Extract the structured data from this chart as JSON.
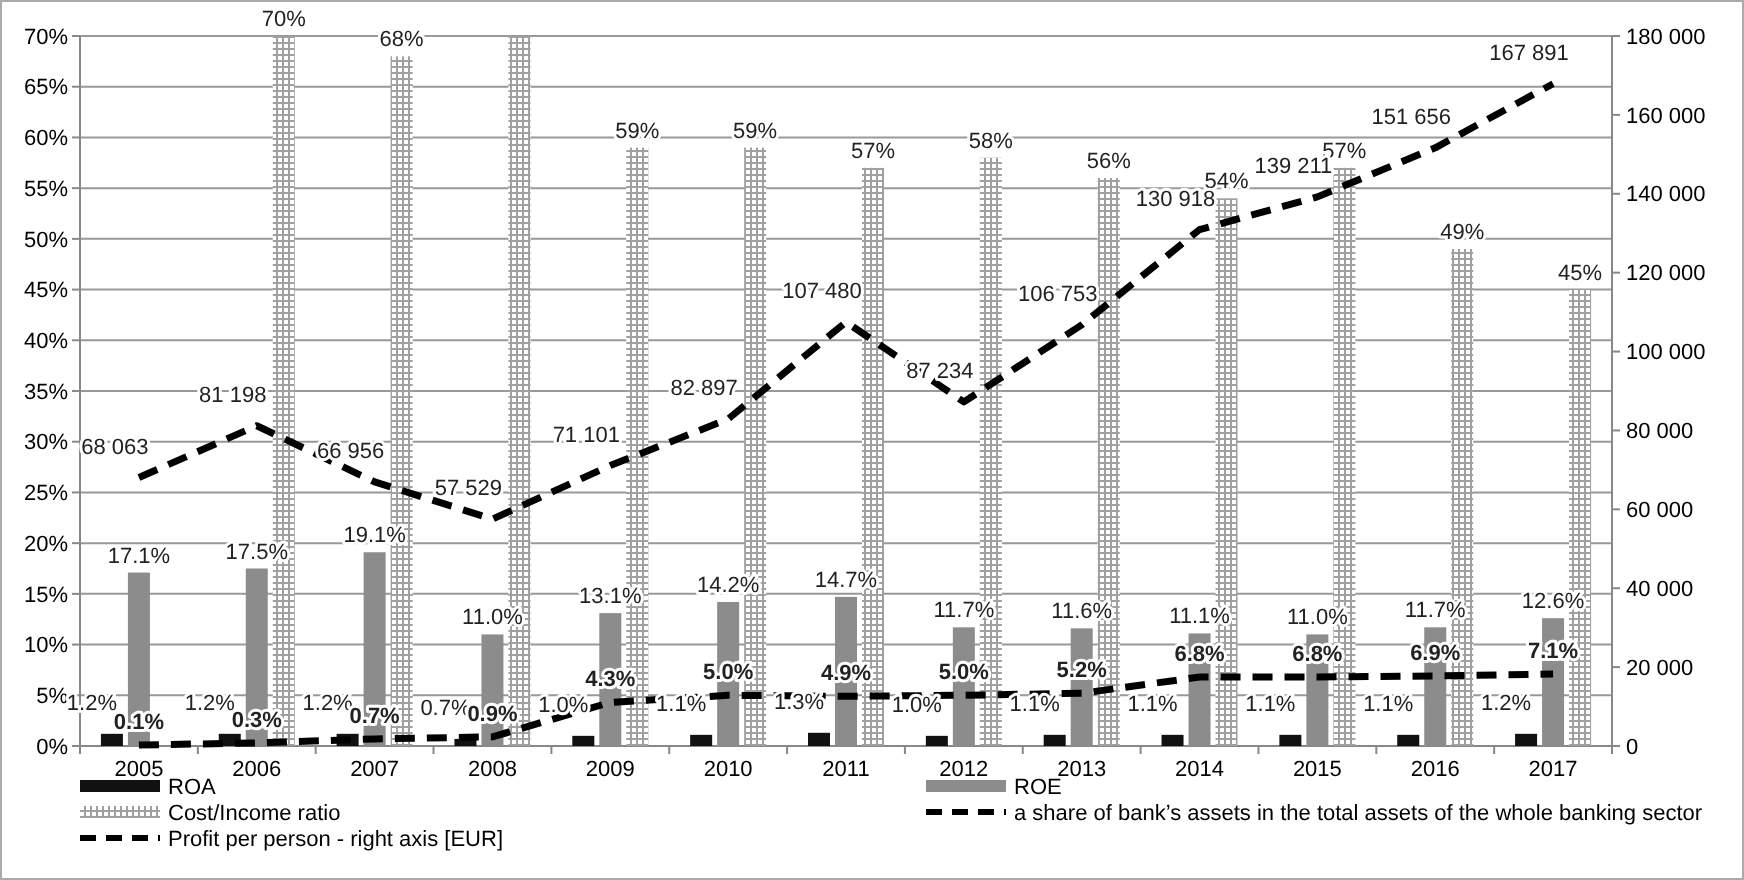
{
  "chart_data": {
    "type": "bar",
    "categories": [
      "2005",
      "2006",
      "2007",
      "2008",
      "2009",
      "2010",
      "2011",
      "2012",
      "2013",
      "2014",
      "2015",
      "2016",
      "2017"
    ],
    "series": [
      {
        "name": "ROA",
        "color": "#111111",
        "values": [
          1.2,
          1.2,
          1.2,
          0.7,
          1.0,
          1.1,
          1.3,
          1.0,
          1.1,
          1.1,
          1.1,
          1.1,
          1.2
        ],
        "value_labels": [
          "1.2%",
          "1.2%",
          "1.2%",
          "0.7%",
          "1.0%",
          "1.1%",
          "1.3%",
          "1.0%",
          "1.1%",
          "1.1%",
          "1.1%",
          "1.1%",
          "1.2%"
        ]
      },
      {
        "name": "ROE",
        "color": "#8c8c8c",
        "values": [
          17.1,
          17.5,
          19.1,
          11.0,
          13.1,
          14.2,
          14.7,
          11.7,
          11.6,
          11.1,
          11.0,
          11.7,
          12.6
        ],
        "value_labels": [
          "17.1%",
          "17.5%",
          "19.1%",
          "11.0%",
          "13.1%",
          "14.2%",
          "14.7%",
          "11.7%",
          "11.6%",
          "11.1%",
          "11.0%",
          "11.7%",
          "12.6%"
        ]
      },
      {
        "name": "Cost/Income ratio",
        "color": "#a0a0a0",
        "values": [
          null,
          70,
          68,
          70,
          59,
          59,
          57,
          58,
          56,
          54,
          57,
          49,
          45
        ],
        "value_labels": [
          null,
          "70%",
          "68%",
          null,
          "59%",
          "59%",
          "57%",
          "58%",
          "56%",
          "54%",
          "57%",
          "49%",
          "45%"
        ]
      },
      {
        "name": "a share of bank’s assets in the total assets of the whole banking sector",
        "type": "line",
        "line_style": "dashed",
        "color": "#000000",
        "values": [
          0.1,
          0.3,
          0.7,
          0.9,
          4.3,
          5.0,
          4.9,
          5.0,
          5.2,
          6.8,
          6.8,
          6.9,
          7.1
        ],
        "value_labels": [
          "0.1%",
          "0.3%",
          "0.7%",
          "0.9%",
          "4.3%",
          "5.0%",
          "4.9%",
          "5.0%",
          "5.2%",
          "6.8%",
          "6.8%",
          "6.9%",
          "7.1%"
        ]
      },
      {
        "name": "Profit per person - right axis [EUR]",
        "type": "line",
        "axis": "y2",
        "line_style": "dashed",
        "color": "#000000",
        "values": [
          68063,
          81198,
          66956,
          57529,
          71101,
          82897,
          107480,
          87234,
          106753,
          130918,
          139211,
          151656,
          167891
        ],
        "value_labels": [
          "68 063",
          "81 198",
          "66 956",
          "57 529",
          "71 101",
          "82 897",
          "107 480",
          "87 234",
          "106 753",
          "130 918",
          "139 211",
          "151 656",
          "167 891"
        ]
      }
    ],
    "ylim": [
      0,
      70
    ],
    "yticks": [
      {
        "value": 0,
        "label": "0%"
      },
      {
        "value": 5,
        "label": "5%"
      },
      {
        "value": 10,
        "label": "10%"
      },
      {
        "value": 15,
        "label": "15%"
      },
      {
        "value": 20,
        "label": "20%"
      },
      {
        "value": 25,
        "label": "25%"
      },
      {
        "value": 30,
        "label": "30%"
      },
      {
        "value": 35,
        "label": "35%"
      },
      {
        "value": 40,
        "label": "40%"
      },
      {
        "value": 45,
        "label": "45%"
      },
      {
        "value": 50,
        "label": "50%"
      },
      {
        "value": 55,
        "label": "55%"
      },
      {
        "value": 60,
        "label": "60%"
      },
      {
        "value": 65,
        "label": "65%"
      },
      {
        "value": 70,
        "label": "70%"
      }
    ],
    "y2lim": [
      0,
      180000
    ],
    "y2ticks": [
      0,
      {
        "value": 20000,
        "label": "20 000"
      },
      {
        "value": 40000,
        "label": "40 000"
      },
      {
        "value": 60000,
        "label": "60 000"
      },
      {
        "value": 80000,
        "label": "80 000"
      },
      {
        "value": 100000,
        "label": "100 000"
      },
      {
        "value": 120000,
        "label": "120 000"
      },
      {
        "value": 140000,
        "label": "140 000"
      },
      {
        "value": 160000,
        "label": "160 000"
      },
      {
        "value": 180000,
        "label": "180 000"
      }
    ],
    "grid": "y",
    "legend": "bottom",
    "marker": "none"
  }
}
